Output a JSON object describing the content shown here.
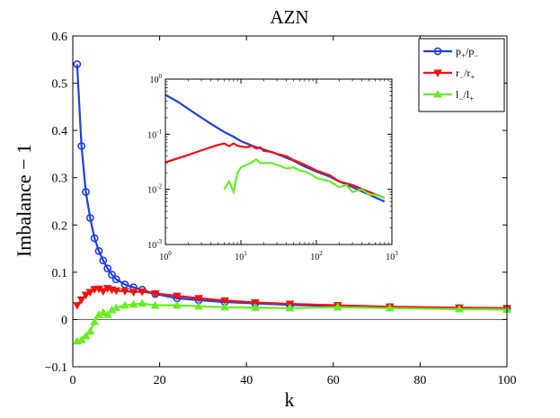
{
  "chart_data": {
    "type": "line",
    "title": "AZN",
    "xlabel": "k",
    "ylabel": "Imbalance − 1",
    "xlim": [
      0,
      100
    ],
    "ylim": [
      -0.1,
      0.6
    ],
    "xticks": [
      0,
      20,
      40,
      60,
      80,
      100
    ],
    "yticks": [
      -0.1,
      0,
      0.1,
      0.2,
      0.3,
      0.4,
      0.5,
      0.6
    ],
    "xtick_labels": [
      "0",
      "20",
      "40",
      "60",
      "80",
      "100"
    ],
    "ytick_labels": [
      "−0.1",
      "0",
      "0.1",
      "0.2",
      "0.3",
      "0.4",
      "0.5",
      "0.6"
    ],
    "legend": {
      "position": "top-right",
      "entries": [
        {
          "series": "p",
          "base1": "p",
          "sub1": "+",
          "sep": "/",
          "base2": "p",
          "sub2": "−"
        },
        {
          "series": "r",
          "base1": "r",
          "sub1": "−",
          "sep": "/",
          "base2": "r",
          "sub2": "+"
        },
        {
          "series": "l",
          "base1": "l",
          "sub1": "−",
          "sep": "/",
          "base2": "l",
          "sub2": "+"
        }
      ]
    },
    "series": [
      {
        "name": "p+/p-",
        "color": "#1f3fe0",
        "marker": "circle",
        "x": [
          1,
          2,
          3,
          4,
          5,
          6,
          7,
          8,
          9,
          10,
          12,
          14,
          16,
          19,
          24,
          29,
          35,
          42,
          50,
          61,
          73,
          89,
          100
        ],
        "values": [
          0.54,
          0.367,
          0.27,
          0.215,
          0.172,
          0.145,
          0.125,
          0.108,
          0.095,
          0.085,
          0.074,
          0.068,
          0.063,
          0.054,
          0.045,
          0.041,
          0.037,
          0.034,
          0.031,
          0.028,
          0.026,
          0.024,
          0.023
        ]
      },
      {
        "name": "r-/r+",
        "color": "#ee1111",
        "marker": "triangle-down",
        "x": [
          1,
          2,
          3,
          4,
          5,
          6,
          7,
          8,
          9,
          10,
          12,
          14,
          16,
          19,
          24,
          29,
          35,
          42,
          50,
          61,
          73,
          89,
          100
        ],
        "values": [
          0.03,
          0.042,
          0.052,
          0.058,
          0.064,
          0.065,
          0.06,
          0.066,
          0.063,
          0.061,
          0.06,
          0.058,
          0.059,
          0.055,
          0.05,
          0.045,
          0.04,
          0.036,
          0.033,
          0.03,
          0.027,
          0.025,
          0.024
        ]
      },
      {
        "name": "l-/l+",
        "color": "#66ee22",
        "marker": "triangle-up",
        "x": [
          1,
          2,
          3,
          4,
          5,
          6,
          7,
          8,
          9,
          10,
          12,
          14,
          16,
          19,
          24,
          29,
          35,
          42,
          50,
          61,
          73,
          89,
          100
        ],
        "values": [
          -0.046,
          -0.043,
          -0.035,
          -0.025,
          -0.005,
          0.01,
          0.015,
          0.01,
          0.02,
          0.025,
          0.03,
          0.032,
          0.034,
          0.03,
          0.03,
          0.028,
          0.026,
          0.025,
          0.024,
          0.026,
          0.024,
          0.022,
          0.021
        ]
      }
    ],
    "inset": {
      "type": "line",
      "xscale": "log",
      "yscale": "log",
      "xlim": [
        1,
        1000
      ],
      "ylim": [
        0.001,
        1
      ],
      "xticks": [
        1,
        10,
        100,
        1000
      ],
      "yticks": [
        0.001,
        0.01,
        0.1,
        1
      ],
      "xtick_labels": [
        {
          "base": "10",
          "exp": "0"
        },
        {
          "base": "10",
          "exp": "1"
        },
        {
          "base": "10",
          "exp": "2"
        },
        {
          "base": "10",
          "exp": "3"
        }
      ],
      "ytick_labels": [
        {
          "base": "10",
          "exp": "-3"
        },
        {
          "base": "10",
          "exp": "-2"
        },
        {
          "base": "10",
          "exp": "-1"
        },
        {
          "base": "10",
          "exp": "0"
        }
      ],
      "series": [
        {
          "name": "p+/p-",
          "color": "#1f3fe0",
          "x": [
            1,
            1.5,
            2,
            3,
            4,
            6,
            8,
            10,
            15,
            20,
            30,
            50,
            70,
            100,
            150,
            200,
            300,
            500,
            800
          ],
          "values": [
            0.52,
            0.38,
            0.29,
            0.2,
            0.155,
            0.11,
            0.09,
            0.075,
            0.06,
            0.053,
            0.044,
            0.033,
            0.026,
            0.021,
            0.017,
            0.014,
            0.011,
            0.008,
            0.006
          ]
        },
        {
          "name": "r-/r+",
          "color": "#ee1111",
          "x": [
            1,
            2,
            3,
            4,
            5,
            6,
            7,
            8,
            9,
            10,
            12,
            14,
            16,
            18,
            20,
            25,
            30,
            40,
            50,
            70,
            100,
            150,
            200,
            300,
            500,
            800
          ],
          "values": [
            0.031,
            0.042,
            0.051,
            0.058,
            0.064,
            0.068,
            0.061,
            0.068,
            0.062,
            0.06,
            0.058,
            0.062,
            0.055,
            0.058,
            0.05,
            0.048,
            0.044,
            0.04,
            0.034,
            0.028,
            0.022,
            0.018,
            0.014,
            0.012,
            0.009,
            0.007
          ]
        },
        {
          "name": "l-/l+",
          "color": "#66ee22",
          "x": [
            6,
            7,
            8,
            9,
            10,
            12,
            14,
            16,
            18,
            20,
            25,
            30,
            40,
            50,
            60,
            70,
            90,
            100,
            150,
            200,
            250,
            300,
            400,
            500,
            600,
            800
          ],
          "values": [
            0.01,
            0.014,
            0.009,
            0.02,
            0.025,
            0.028,
            0.031,
            0.035,
            0.03,
            0.03,
            0.03,
            0.028,
            0.024,
            0.025,
            0.022,
            0.021,
            0.018,
            0.016,
            0.014,
            0.011,
            0.012,
            0.009,
            0.01,
            0.008,
            0.008,
            0.007
          ]
        }
      ]
    }
  }
}
